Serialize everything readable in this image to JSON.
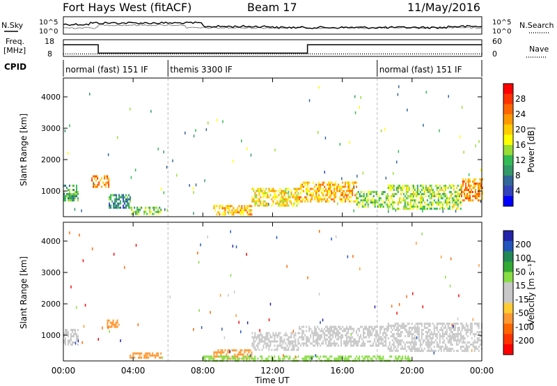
{
  "header": {
    "radar": "Fort Hays West (fitACF)",
    "beam": "Beam 17",
    "date": "11/May/2016"
  },
  "panels": {
    "nsky_label": "N.Sky",
    "nsearch_label": "N.Search",
    "freq_label_1": "Freq.",
    "freq_label_2": "[MHz]",
    "nave_label": "Nave",
    "cpid_label": "CPID",
    "nsky_ticks": [
      "10^5",
      "10^0"
    ],
    "nsearch_ticks": [
      "10^5",
      "10^0"
    ],
    "freq_ticks": [
      "18",
      "8"
    ],
    "nave_ticks": [
      "60",
      "0"
    ]
  },
  "cpid_segments": [
    {
      "label": "normal (fast) 151 IF",
      "start_hr": 0,
      "end_hr": 6
    },
    {
      "label": "themis 3300 IF",
      "start_hr": 6,
      "end_hr": 18
    },
    {
      "label": "normal (fast) 151 IF",
      "start_hr": 18,
      "end_hr": 24
    }
  ],
  "freq_series": {
    "hours": [
      0,
      2.0,
      2.0,
      14.0,
      14.0,
      24
    ],
    "mhz": [
      15,
      15,
      10,
      10,
      15,
      15
    ]
  },
  "nave_series": {
    "hours": [
      0,
      24
    ],
    "value": [
      9,
      9
    ]
  },
  "power_colorbar": {
    "label": "Power [dB]",
    "ticks": [
      "28",
      "24",
      "20",
      "16",
      "12",
      "8",
      "4"
    ],
    "colors": [
      "#ff0000",
      "#ff3300",
      "#ff6600",
      "#ff9900",
      "#ffcc00",
      "#ffff00",
      "#99dd33",
      "#33bb55",
      "#339966",
      "#336699",
      "#3344bb",
      "#0000ff"
    ]
  },
  "velocity_colorbar": {
    "label": "Velocity [m s⁻¹]",
    "ticks": [
      "200",
      "100",
      "50",
      "15",
      "-15",
      "-50",
      "-100",
      "-200"
    ],
    "colors": [
      "#2222aa",
      "#2255bb",
      "#228855",
      "#33aa33",
      "#88dd44",
      "#c8c8c8",
      "#c8c8c8",
      "#ffcc33",
      "#ff9933",
      "#ff6600",
      "#ff3300",
      "#ff0000"
    ]
  },
  "axes": {
    "ylabel": "Slant Range [km]",
    "xlabel": "Time UT",
    "yticks": [
      "1000",
      "2000",
      "3000",
      "4000"
    ],
    "xticks": [
      "00:00",
      "04:00",
      "08:00",
      "12:00",
      "16:00",
      "20:00",
      "00:00"
    ]
  },
  "chart_data": [
    {
      "type": "heatmap",
      "title": "Power",
      "xlabel": "Time UT",
      "ylabel": "Slant Range [km]",
      "xlim": [
        0,
        24
      ],
      "ylim": [
        180,
        4600
      ],
      "colorbar": {
        "label": "Power [dB]",
        "range": [
          0,
          30
        ]
      },
      "regions": [
        {
          "t0": 0.0,
          "t1": 0.8,
          "r0": 700,
          "r1": 1200,
          "value": 10
        },
        {
          "t0": 1.6,
          "t1": 2.6,
          "r0": 1150,
          "r1": 1500,
          "value": 22
        },
        {
          "t0": 2.6,
          "t1": 3.8,
          "r0": 500,
          "r1": 900,
          "value": 8
        },
        {
          "t0": 3.8,
          "t1": 5.6,
          "r0": 300,
          "r1": 500,
          "value": 12
        },
        {
          "t0": 8.6,
          "t1": 10.8,
          "r0": 250,
          "r1": 550,
          "value": 20
        },
        {
          "t0": 10.8,
          "t1": 13.5,
          "r0": 550,
          "r1": 1100,
          "value": 18
        },
        {
          "t0": 13.5,
          "t1": 16.8,
          "r0": 650,
          "r1": 1300,
          "value": 20
        },
        {
          "t0": 16.8,
          "t1": 18.6,
          "r0": 500,
          "r1": 1000,
          "value": 12
        },
        {
          "t0": 18.6,
          "t1": 22.8,
          "r0": 450,
          "r1": 1200,
          "value": 14
        },
        {
          "t0": 22.8,
          "t1": 24.0,
          "r0": 700,
          "r1": 1400,
          "value": 22
        }
      ]
    },
    {
      "type": "heatmap",
      "title": "Velocity",
      "xlabel": "Time UT",
      "ylabel": "Slant Range [km]",
      "xlim": [
        0,
        24
      ],
      "ylim": [
        180,
        4600
      ],
      "colorbar": {
        "label": "Velocity [m s⁻¹]",
        "range": [
          -200,
          200
        ]
      },
      "regions": [
        {
          "t0": 0.0,
          "t1": 0.8,
          "r0": 700,
          "r1": 1200,
          "value": 0
        },
        {
          "t0": 2.5,
          "t1": 3.2,
          "r0": 1300,
          "r1": 1500,
          "value": -50
        },
        {
          "t0": 3.8,
          "t1": 5.6,
          "r0": 300,
          "r1": 450,
          "value": -50
        },
        {
          "t0": 8.6,
          "t1": 10.8,
          "r0": 250,
          "r1": 550,
          "value": -50
        },
        {
          "t0": 10.8,
          "t1": 13.5,
          "r0": 550,
          "r1": 1100,
          "value": 0
        },
        {
          "t0": 13.5,
          "t1": 18.6,
          "r0": 650,
          "r1": 1300,
          "value": 0
        },
        {
          "t0": 18.6,
          "t1": 24.0,
          "r0": 500,
          "r1": 1400,
          "value": 0
        },
        {
          "t0": 8.0,
          "t1": 20.0,
          "r0": 180,
          "r1": 350,
          "value": 50
        }
      ]
    }
  ]
}
